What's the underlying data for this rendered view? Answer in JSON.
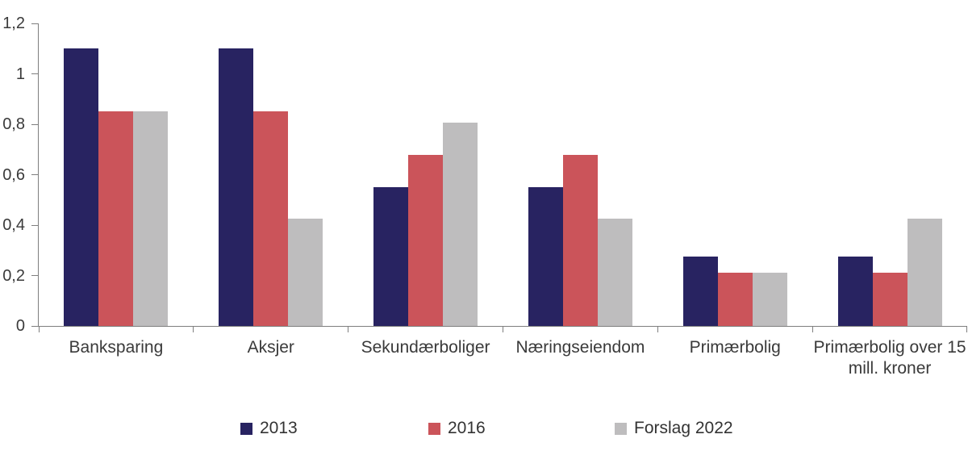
{
  "chart_data": {
    "type": "bar",
    "title": "",
    "xlabel": "",
    "ylabel": "",
    "grid": false,
    "legend_position": "bottom",
    "ylim": [
      0,
      1.2
    ],
    "yticks": [
      {
        "value": 0,
        "label": "0"
      },
      {
        "value": 0.2,
        "label": "0,2"
      },
      {
        "value": 0.4,
        "label": "0,4"
      },
      {
        "value": 0.6,
        "label": "0,6"
      },
      {
        "value": 0.8,
        "label": "0,8"
      },
      {
        "value": 1,
        "label": "1"
      },
      {
        "value": 1.2,
        "label": "1,2"
      }
    ],
    "categories": [
      "Banksparing",
      "Aksjer",
      "Sekundærboliger",
      "Næringseiendom",
      "Primærbolig",
      "Primærbolig over 15 mill. kroner"
    ],
    "series": [
      {
        "name": "2013",
        "color": "#282361",
        "values": [
          1.1,
          1.1,
          0.55,
          0.55,
          0.275,
          0.275
        ]
      },
      {
        "name": "2016",
        "color": "#cb545a",
        "values": [
          0.85,
          0.85,
          0.68,
          0.68,
          0.2125,
          0.2125
        ]
      },
      {
        "name": "Forslag 2022",
        "color": "#bebdbe",
        "values": [
          0.85,
          0.425,
          0.8075,
          0.425,
          0.2125,
          0.425
        ]
      }
    ]
  },
  "colors": {
    "axis": "#7f7f7f",
    "text": "#3a3a3a",
    "background": "#ffffff"
  }
}
